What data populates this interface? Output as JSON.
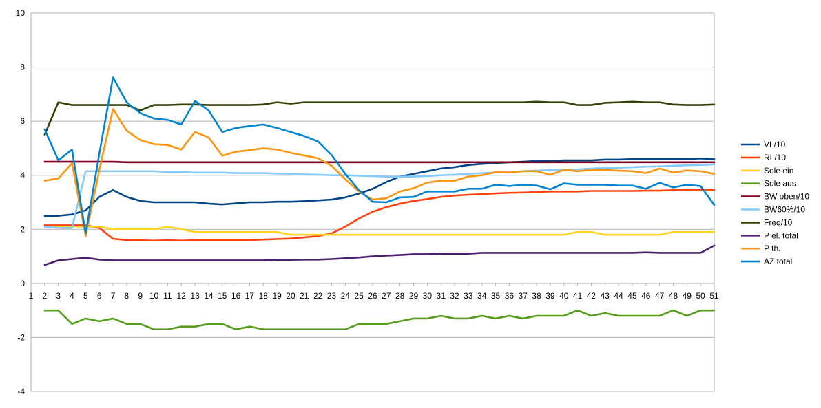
{
  "chart_data": {
    "type": "line",
    "title": "",
    "xlabel": "",
    "ylabel": "",
    "ylim": [
      -4,
      10
    ],
    "yticks": [
      10,
      8,
      6,
      4,
      2,
      0,
      -2,
      -4
    ],
    "x_tick_labels": [
      "1",
      "2",
      "3",
      "4",
      "5",
      "6",
      "7",
      "8",
      "9",
      "10",
      "11",
      "12",
      "13",
      "14",
      "15",
      "16",
      "17",
      "18",
      "19",
      "20",
      "21",
      "22",
      "23",
      "24",
      "25",
      "26",
      "27",
      "28",
      "29",
      "30",
      "31",
      "32",
      "33",
      "34",
      "35",
      "36",
      "37",
      "38",
      "39",
      "40",
      "41",
      "42",
      "43",
      "44",
      "45",
      "46",
      "47",
      "48",
      "49",
      "50",
      "51"
    ],
    "x": [
      2,
      3,
      4,
      5,
      6,
      7,
      8,
      9,
      10,
      11,
      12,
      13,
      14,
      15,
      16,
      17,
      18,
      19,
      20,
      21,
      22,
      23,
      24,
      25,
      26,
      27,
      28,
      29,
      30,
      31,
      32,
      33,
      34,
      35,
      36,
      37,
      38,
      39,
      40,
      41,
      42,
      43,
      44,
      45,
      46,
      47,
      48,
      49,
      50,
      51
    ],
    "grid": true,
    "legend_position": "right",
    "series": [
      {
        "name": "VL/10",
        "color": "#004586",
        "values": [
          2.5,
          2.5,
          2.55,
          2.7,
          3.2,
          3.45,
          3.2,
          3.05,
          3.0,
          3.0,
          3.0,
          3.0,
          2.95,
          2.92,
          2.96,
          3.0,
          3.0,
          3.02,
          3.02,
          3.04,
          3.07,
          3.1,
          3.18,
          3.32,
          3.5,
          3.75,
          3.95,
          4.05,
          4.15,
          4.25,
          4.3,
          4.38,
          4.42,
          4.45,
          4.48,
          4.5,
          4.53,
          4.53,
          4.55,
          4.55,
          4.55,
          4.58,
          4.58,
          4.6,
          4.6,
          4.6,
          4.6,
          4.6,
          4.62,
          4.6
        ]
      },
      {
        "name": "RL/10",
        "color": "#ff420e",
        "values": [
          2.15,
          2.15,
          2.15,
          2.15,
          2.05,
          1.65,
          1.6,
          1.6,
          1.58,
          1.6,
          1.58,
          1.6,
          1.6,
          1.6,
          1.6,
          1.6,
          1.62,
          1.64,
          1.66,
          1.7,
          1.75,
          1.85,
          2.1,
          2.4,
          2.65,
          2.82,
          2.95,
          3.05,
          3.12,
          3.2,
          3.25,
          3.28,
          3.3,
          3.33,
          3.35,
          3.36,
          3.38,
          3.4,
          3.4,
          3.4,
          3.42,
          3.42,
          3.42,
          3.42,
          3.43,
          3.43,
          3.45,
          3.45,
          3.45,
          3.45
        ]
      },
      {
        "name": "Sole ein",
        "color": "#ffd320",
        "values": [
          2.1,
          2.1,
          2.1,
          2.1,
          2.1,
          2.0,
          2.0,
          2.0,
          2.0,
          2.1,
          2.0,
          1.9,
          1.9,
          1.9,
          1.9,
          1.9,
          1.9,
          1.9,
          1.8,
          1.8,
          1.8,
          1.8,
          1.8,
          1.8,
          1.8,
          1.8,
          1.8,
          1.8,
          1.8,
          1.8,
          1.8,
          1.8,
          1.8,
          1.8,
          1.8,
          1.8,
          1.8,
          1.8,
          1.8,
          1.9,
          1.9,
          1.8,
          1.8,
          1.8,
          1.8,
          1.8,
          1.9,
          1.9,
          1.9,
          1.9
        ]
      },
      {
        "name": "Sole aus",
        "color": "#579d1c",
        "values": [
          -1.0,
          -1.0,
          -1.5,
          -1.3,
          -1.4,
          -1.3,
          -1.5,
          -1.5,
          -1.7,
          -1.7,
          -1.6,
          -1.6,
          -1.5,
          -1.5,
          -1.7,
          -1.6,
          -1.7,
          -1.7,
          -1.7,
          -1.7,
          -1.7,
          -1.7,
          -1.7,
          -1.5,
          -1.5,
          -1.5,
          -1.4,
          -1.3,
          -1.3,
          -1.2,
          -1.3,
          -1.3,
          -1.2,
          -1.3,
          -1.2,
          -1.3,
          -1.2,
          -1.2,
          -1.2,
          -1.0,
          -1.2,
          -1.1,
          -1.2,
          -1.2,
          -1.2,
          -1.2,
          -1.0,
          -1.2,
          -1.0,
          -1.0
        ]
      },
      {
        "name": "BW oben/10",
        "color": "#7e0021",
        "values": [
          4.5,
          4.5,
          4.5,
          4.5,
          4.5,
          4.5,
          4.48,
          4.48,
          4.48,
          4.48,
          4.48,
          4.48,
          4.48,
          4.48,
          4.48,
          4.48,
          4.48,
          4.48,
          4.48,
          4.48,
          4.48,
          4.48,
          4.48,
          4.48,
          4.48,
          4.48,
          4.48,
          4.48,
          4.48,
          4.48,
          4.48,
          4.48,
          4.48,
          4.48,
          4.48,
          4.48,
          4.48,
          4.48,
          4.48,
          4.48,
          4.48,
          4.48,
          4.48,
          4.48,
          4.48,
          4.48,
          4.48,
          4.48,
          4.48,
          4.48
        ]
      },
      {
        "name": "BW60%/10",
        "color": "#83caff",
        "values": [
          2.1,
          2.05,
          2.05,
          4.15,
          4.15,
          4.15,
          4.15,
          4.15,
          4.15,
          4.12,
          4.12,
          4.1,
          4.1,
          4.1,
          4.08,
          4.08,
          4.08,
          4.06,
          4.05,
          4.03,
          4.02,
          4.0,
          4.0,
          3.98,
          3.97,
          3.95,
          3.95,
          3.95,
          3.97,
          4.0,
          4.02,
          4.05,
          4.08,
          4.1,
          4.12,
          4.15,
          4.17,
          4.2,
          4.2,
          4.22,
          4.25,
          4.27,
          4.28,
          4.3,
          4.32,
          4.33,
          4.35,
          4.37,
          4.38,
          4.4
        ]
      },
      {
        "name": "Freq/10",
        "color": "#314004",
        "values": [
          5.5,
          6.7,
          6.6,
          6.6,
          6.6,
          6.6,
          6.6,
          6.4,
          6.6,
          6.6,
          6.62,
          6.62,
          6.6,
          6.6,
          6.6,
          6.6,
          6.62,
          6.7,
          6.65,
          6.7,
          6.7,
          6.7,
          6.7,
          6.7,
          6.7,
          6.7,
          6.7,
          6.7,
          6.7,
          6.7,
          6.7,
          6.7,
          6.7,
          6.7,
          6.7,
          6.7,
          6.72,
          6.7,
          6.7,
          6.6,
          6.6,
          6.68,
          6.7,
          6.72,
          6.7,
          6.7,
          6.62,
          6.6,
          6.6,
          6.62
        ]
      },
      {
        "name": "P el. total",
        "color": "#4b1f6f",
        "values": [
          0.68,
          0.85,
          0.9,
          0.95,
          0.88,
          0.85,
          0.85,
          0.85,
          0.85,
          0.85,
          0.85,
          0.85,
          0.85,
          0.85,
          0.85,
          0.85,
          0.85,
          0.87,
          0.87,
          0.88,
          0.88,
          0.9,
          0.93,
          0.96,
          1.0,
          1.03,
          1.05,
          1.08,
          1.08,
          1.1,
          1.1,
          1.1,
          1.13,
          1.13,
          1.13,
          1.13,
          1.13,
          1.13,
          1.13,
          1.13,
          1.13,
          1.13,
          1.13,
          1.13,
          1.15,
          1.13,
          1.13,
          1.13,
          1.13,
          1.4
        ]
      },
      {
        "name": "P th.",
        "color": "#ff950e",
        "values": [
          3.8,
          3.88,
          4.45,
          1.75,
          4.2,
          6.45,
          5.65,
          5.3,
          5.15,
          5.12,
          4.95,
          5.6,
          5.4,
          4.72,
          4.87,
          4.93,
          5.0,
          4.95,
          4.83,
          4.73,
          4.63,
          4.35,
          3.85,
          3.4,
          3.1,
          3.15,
          3.4,
          3.52,
          3.73,
          3.8,
          3.8,
          3.95,
          4.0,
          4.12,
          4.1,
          4.15,
          4.15,
          4.02,
          4.2,
          4.15,
          4.2,
          4.2,
          4.17,
          4.15,
          4.08,
          4.25,
          4.1,
          4.18,
          4.15,
          4.05
        ]
      },
      {
        "name": "AZ total",
        "color": "#0084d1",
        "values": [
          5.7,
          4.55,
          4.95,
          1.85,
          4.8,
          7.62,
          6.7,
          6.3,
          6.1,
          6.05,
          5.88,
          6.75,
          6.4,
          5.6,
          5.75,
          5.82,
          5.88,
          5.75,
          5.6,
          5.45,
          5.25,
          4.75,
          4.05,
          3.45,
          3.02,
          3.0,
          3.18,
          3.2,
          3.4,
          3.4,
          3.4,
          3.5,
          3.5,
          3.65,
          3.6,
          3.65,
          3.62,
          3.48,
          3.7,
          3.65,
          3.65,
          3.65,
          3.62,
          3.62,
          3.5,
          3.72,
          3.55,
          3.65,
          3.6,
          2.9
        ]
      }
    ]
  }
}
